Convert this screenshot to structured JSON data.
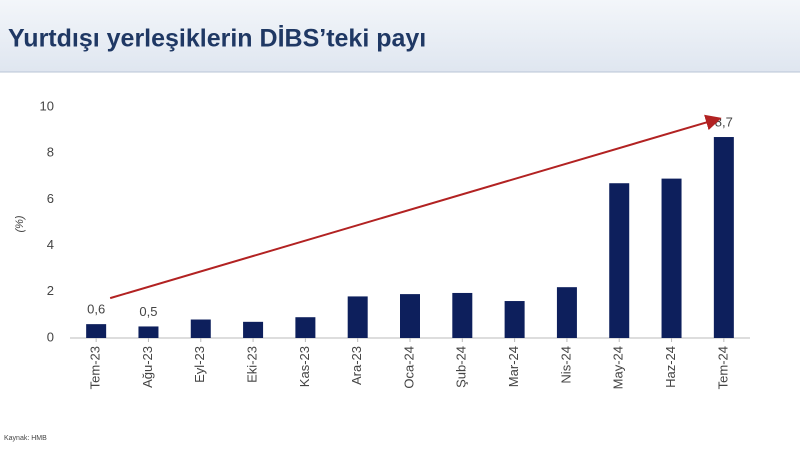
{
  "chart_data": {
    "type": "bar",
    "title": "Yurtdışı yerleşiklerin DİBS’teki payı",
    "y_label": "(%)",
    "source": "Kaynak: HMB",
    "categories": [
      "Tem-23",
      "Ağu-23",
      "Eyl-23",
      "Eki-23",
      "Kas-23",
      "Ara-23",
      "Oca-24",
      "Şub-24",
      "Mar-24",
      "Nis-24",
      "May-24",
      "Haz-24",
      "Tem-24"
    ],
    "values": [
      0.6,
      0.5,
      0.8,
      0.7,
      0.9,
      1.8,
      1.9,
      1.95,
      1.6,
      2.2,
      6.7,
      6.9,
      8.7
    ],
    "value_labels": [
      "0,6",
      "0,5",
      null,
      null,
      null,
      null,
      null,
      null,
      null,
      null,
      null,
      null,
      "8,7"
    ],
    "color": "#0d1f5c",
    "ylim": [
      0,
      10
    ],
    "yticks": [
      0,
      2,
      4,
      6,
      8,
      10
    ],
    "grid": false
  }
}
